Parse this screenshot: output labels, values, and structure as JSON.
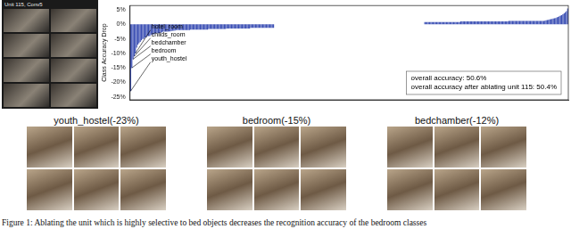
{
  "unit_panel": {
    "title": "Unit 115, Conv5"
  },
  "chart_data": {
    "type": "bar",
    "y_label": "Class Accuracy Drop",
    "color": "#3c50b4",
    "ylim": [
      -26,
      6.5
    ],
    "yticks": [
      {
        "value": -25,
        "label": "-25%"
      },
      {
        "value": -20,
        "label": "-20%"
      },
      {
        "value": -15,
        "label": "-15%"
      },
      {
        "value": -10,
        "label": "-10%"
      },
      {
        "value": -5,
        "label": "-5%"
      },
      {
        "value": 0,
        "label": "0%"
      },
      {
        "value": 5,
        "label": "5%"
      }
    ],
    "grid": false,
    "tick_labels": "y",
    "annotations": [
      "youth_hostel",
      "bedroom",
      "bedchamber",
      "childs_room",
      "hotel_room"
    ],
    "info_box": [
      "overall accuracy: 50.6%",
      "overall accuracy after ablating unit 115: 50.4%"
    ],
    "categories": [
      null,
      null,
      null,
      null,
      null,
      null,
      null,
      null,
      null,
      null,
      null,
      null,
      null,
      null,
      null,
      null,
      null,
      null,
      null,
      null,
      null,
      null,
      null,
      null,
      null,
      null,
      null,
      null,
      null,
      null,
      null,
      null,
      null,
      null,
      null,
      null,
      null,
      null,
      null,
      null,
      null,
      null,
      null,
      null,
      null,
      null,
      null,
      null,
      null,
      null,
      null,
      null,
      null,
      null,
      null,
      null,
      null,
      null,
      null,
      null,
      null,
      null,
      null,
      null,
      null,
      null,
      null,
      null,
      null,
      null,
      null,
      null,
      null,
      null,
      null,
      null,
      null,
      null,
      null,
      null,
      null,
      null,
      null,
      null,
      null,
      null,
      null,
      null,
      null,
      null,
      null,
      null,
      null,
      null,
      null,
      null,
      null,
      null,
      null,
      null,
      null,
      null,
      null,
      null,
      null,
      null,
      null,
      null,
      null,
      null,
      null,
      null,
      null,
      null,
      null,
      null,
      null,
      null,
      null,
      null,
      null,
      null,
      null,
      null,
      null,
      null,
      null,
      null,
      null,
      null,
      null,
      null,
      null,
      null,
      null,
      null,
      null,
      null,
      null,
      null,
      null,
      null,
      null,
      null,
      null,
      null,
      null,
      null,
      null,
      null,
      null,
      null,
      null,
      null,
      null,
      null,
      null,
      null,
      null,
      null,
      null,
      null,
      null,
      null,
      null,
      null,
      null,
      null,
      null,
      null,
      null,
      null,
      null,
      null,
      null,
      null,
      null,
      null,
      null,
      null,
      null,
      null,
      null,
      null,
      null,
      null,
      null,
      null,
      null,
      null,
      null,
      null,
      null,
      null,
      null,
      null,
      null,
      null,
      null,
      null,
      null,
      null,
      null,
      null,
      null,
      null,
      null,
      null,
      null,
      null,
      null,
      null,
      null,
      null,
      null,
      null,
      null,
      null,
      null,
      null,
      null,
      null,
      null,
      null,
      null,
      null,
      null,
      null,
      null,
      null,
      null,
      null,
      null,
      null,
      null,
      null,
      null,
      null,
      null,
      null,
      null,
      null,
      null,
      null,
      null,
      null,
      null,
      null,
      null,
      null,
      null,
      null,
      null,
      null,
      null,
      null,
      null,
      null,
      null,
      null,
      null,
      null,
      null,
      null,
      null,
      null,
      null,
      null,
      null,
      null,
      null,
      null,
      null,
      null,
      null,
      null,
      null,
      null,
      null,
      null,
      null,
      null,
      null,
      null,
      null,
      null,
      null,
      null,
      null,
      null,
      null,
      null,
      null,
      null,
      null,
      null,
      null,
      null,
      null,
      null,
      null,
      null,
      null,
      null,
      null,
      null,
      null,
      null,
      null,
      null,
      null,
      null,
      null,
      null,
      null,
      null,
      null,
      null,
      null,
      null,
      null,
      null,
      null,
      null,
      null,
      null,
      null,
      null,
      null,
      null,
      null,
      null,
      null,
      null,
      null,
      null,
      null,
      null,
      null,
      null,
      null,
      null,
      null,
      null,
      null,
      null,
      null,
      null,
      null,
      null,
      null,
      null,
      null,
      null,
      null,
      null,
      null,
      null,
      null,
      null,
      null,
      null,
      null,
      null,
      null
    ],
    "values": [
      -23,
      -15,
      -12,
      -11,
      -10,
      -8,
      -7,
      -6.5,
      -6,
      -5.5,
      -5,
      -5,
      -4.5,
      -4.5,
      -4,
      -4,
      -4,
      -3.5,
      -3.5,
      -3.5,
      -3.2,
      -3,
      -3,
      -3,
      -3,
      -2.8,
      -2.8,
      -2.5,
      -2.5,
      -2.5,
      -2.5,
      -2.5,
      -2.4,
      -2.4,
      -2.3,
      -2.2,
      -2.2,
      -2.1,
      -2,
      -2,
      -2,
      -2,
      -2,
      -2,
      -2,
      -2,
      -2,
      -2,
      -2,
      -2,
      -1.8,
      -1.8,
      -1.8,
      -1.8,
      -1.8,
      -1.8,
      -1.8,
      -1.8,
      -1.8,
      -1.8,
      -1.8,
      -1.8,
      -1.8,
      -1.8,
      -1.8,
      -1.6,
      -1.6,
      -1.6,
      -1.6,
      -1.6,
      -1.6,
      -1.6,
      -1.6,
      -1.6,
      -1.6,
      -1.6,
      -1.6,
      -1.6,
      -1.6,
      -1.6,
      -1.4,
      -1.4,
      -1.4,
      -1.4,
      -1.4,
      -1.4,
      -1.4,
      -1.4,
      -1.4,
      -1.4,
      -1.4,
      -1.4,
      -1.4,
      -1.4,
      -1.4,
      -1.4,
      -1.4,
      -1.4,
      -1.4,
      -1.4,
      -1.2,
      -1.2,
      -1.2,
      -1.2,
      -1.2,
      -1.2,
      -1.2,
      -1.2,
      -1.2,
      -1.2,
      -1.2,
      -1.2,
      -1.2,
      -1.2,
      -1.2,
      -1.2,
      -1.2,
      -1.2,
      -1.2,
      -1.2,
      0,
      0,
      0,
      0,
      0,
      0,
      0,
      0,
      0,
      0,
      0,
      0,
      0,
      0,
      0,
      0,
      0,
      0,
      0,
      0,
      0,
      0,
      0,
      0,
      0,
      0,
      0,
      0,
      0,
      0,
      0,
      0,
      0,
      0,
      0,
      0,
      0,
      0,
      0,
      0,
      0,
      0,
      0,
      0,
      0,
      0,
      0,
      0,
      0,
      0,
      0,
      0,
      0,
      0,
      0,
      0,
      0,
      0,
      0,
      0,
      0,
      0,
      0,
      0,
      0,
      0,
      0,
      0,
      0,
      0,
      0,
      0,
      0,
      0,
      0,
      0,
      0,
      0,
      0,
      0,
      0,
      0,
      0,
      0,
      0,
      0,
      0,
      0,
      0,
      0,
      0,
      0,
      0,
      0,
      0,
      0,
      0,
      0,
      0,
      0,
      0,
      0,
      0,
      0,
      0,
      0,
      0,
      0,
      0,
      0,
      0,
      0,
      0,
      0,
      0,
      0,
      0,
      0,
      0,
      0,
      0,
      0,
      0,
      0,
      0,
      0.8,
      0.8,
      0.8,
      0.8,
      0.8,
      0.8,
      0.8,
      0.8,
      0.8,
      0.8,
      0.8,
      0.8,
      0.8,
      0.8,
      0.8,
      0.8,
      0.8,
      0.8,
      0.8,
      0.8,
      0.8,
      0.8,
      0.8,
      0.8,
      0.8,
      0.8,
      0.8,
      0.8,
      0.8,
      0.8,
      1,
      1,
      1,
      1,
      1,
      1,
      1,
      1,
      1,
      1,
      1,
      1,
      1,
      1,
      1,
      1,
      1,
      1,
      1,
      1,
      1,
      1,
      1,
      1,
      1,
      1,
      1,
      1,
      1,
      1,
      1,
      1,
      1,
      1,
      1,
      1,
      1,
      1,
      1,
      1,
      1.2,
      1.2,
      1.2,
      1.2,
      1.2,
      1.2,
      1.2,
      1.2,
      1.2,
      1.2,
      1.2,
      1.2,
      1.2,
      1.2,
      1.2,
      1.2,
      1.2,
      1.2,
      1.2,
      1.2,
      1.2,
      1.2,
      1.2,
      1.2,
      1.2,
      1.2,
      1.2,
      1.2,
      1.2,
      1.2,
      1.3,
      1.4,
      1.5,
      1.6,
      1.7,
      1.8,
      1.9,
      2,
      2.1,
      2.2,
      2.4,
      2.6,
      2.8,
      3,
      3.2,
      3.5,
      3.8,
      4.2,
      4.6,
      5.5
    ]
  },
  "examples": [
    {
      "title": "youth_hostel(-23%)"
    },
    {
      "title": "bedroom(-15%)"
    },
    {
      "title": "bedchamber(-12%)"
    }
  ],
  "caption": "Figure 1: Ablating the unit which is highly selective to bed objects decreases the recognition accuracy of the bedroom classes"
}
